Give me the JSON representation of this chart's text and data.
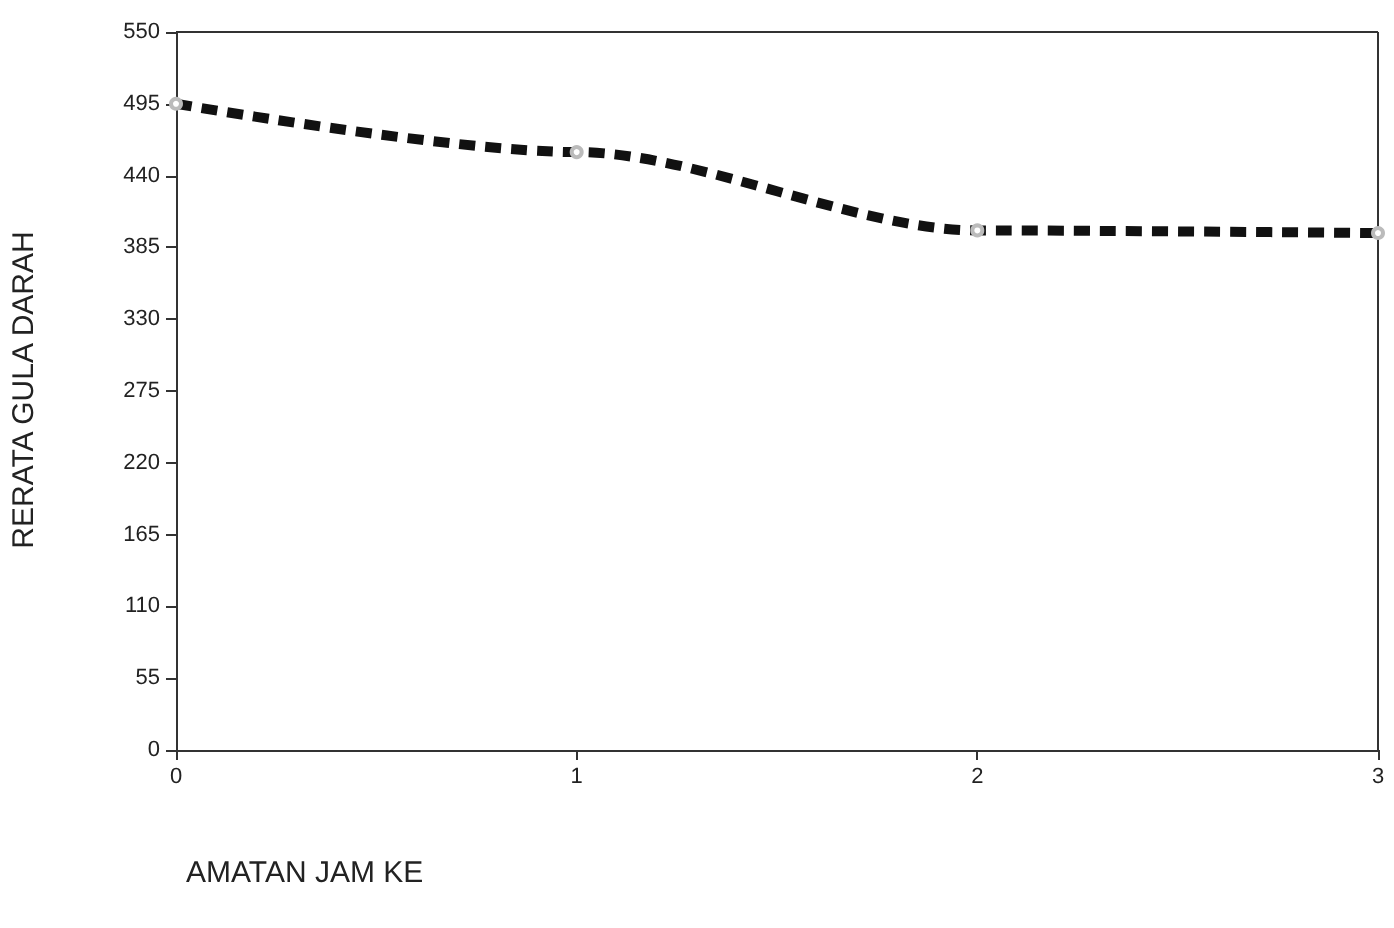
{
  "chart_data": {
    "type": "line",
    "xlabel": "AMATAN JAM KE",
    "ylabel": "RERATA GULA DARAH",
    "x": [
      0,
      1,
      2,
      3
    ],
    "series": [
      {
        "color": "#111111",
        "values": [
          495,
          458,
          398,
          396
        ]
      }
    ],
    "xlim": [
      0,
      3
    ],
    "xticks": [
      0,
      1,
      2,
      3
    ],
    "ylim": [
      0,
      550
    ],
    "yticks": [
      0,
      55,
      110,
      165,
      220,
      275,
      330,
      385,
      440,
      495,
      550
    ],
    "grid": false,
    "marker": "circle",
    "line_style": "dashed"
  }
}
